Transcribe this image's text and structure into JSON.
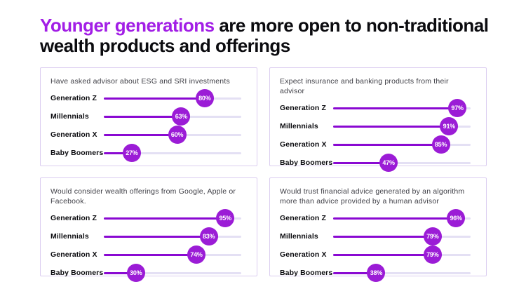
{
  "title": {
    "highlight": "Younger generations",
    "rest": " are more open to non-traditional wealth products and offerings"
  },
  "colors": {
    "accent": "#A21EE6",
    "bar": "#8A09D2",
    "badge": "#9B1CD6",
    "track": "#E4E0F4",
    "panel-border": "#DBCDF0",
    "ink": "#0B0B0F",
    "muted": "#3E3E45"
  },
  "chart_data": [
    {
      "type": "bar",
      "title": "Have asked advisor about ESG and SRI investments",
      "categories": [
        "Generation Z",
        "Millennials",
        "Generation X",
        "Baby Boomers"
      ],
      "values": [
        80,
        63,
        60,
        27
      ],
      "labels": [
        "80%",
        "63%",
        "60%",
        "27%"
      ],
      "unit": "%",
      "xlim": [
        0,
        100
      ],
      "legend": "none",
      "grid": false
    },
    {
      "type": "bar",
      "title": "Expect insurance and banking products from their advisor",
      "categories": [
        "Generation Z",
        "Millennials",
        "Generation X",
        "Baby Boomers"
      ],
      "values": [
        97,
        91,
        85,
        47
      ],
      "labels": [
        "97%",
        "91%",
        "85%",
        "47%"
      ],
      "unit": "%",
      "xlim": [
        0,
        100
      ],
      "legend": "none",
      "grid": false
    },
    {
      "type": "bar",
      "title": "Would consider wealth offerings from Google, Apple or Facebook.",
      "categories": [
        "Generation Z",
        "Millennials",
        "Generation X",
        "Baby Boomers"
      ],
      "values": [
        95,
        83,
        74,
        30
      ],
      "labels": [
        "95%",
        "83%",
        "74%",
        "30%"
      ],
      "unit": "%",
      "xlim": [
        0,
        100
      ],
      "legend": "none",
      "grid": false
    },
    {
      "type": "bar",
      "title": "Would trust financial advice generated by an algorithm more than advice provided by a human advisor",
      "categories": [
        "Generation Z",
        "Millennials",
        "Generation X",
        "Baby Boomers"
      ],
      "values": [
        96,
        79,
        79,
        38
      ],
      "labels": [
        "96%",
        "79%",
        "79%",
        "38%"
      ],
      "unit": "%",
      "xlim": [
        0,
        100
      ],
      "legend": "none",
      "grid": false
    }
  ]
}
